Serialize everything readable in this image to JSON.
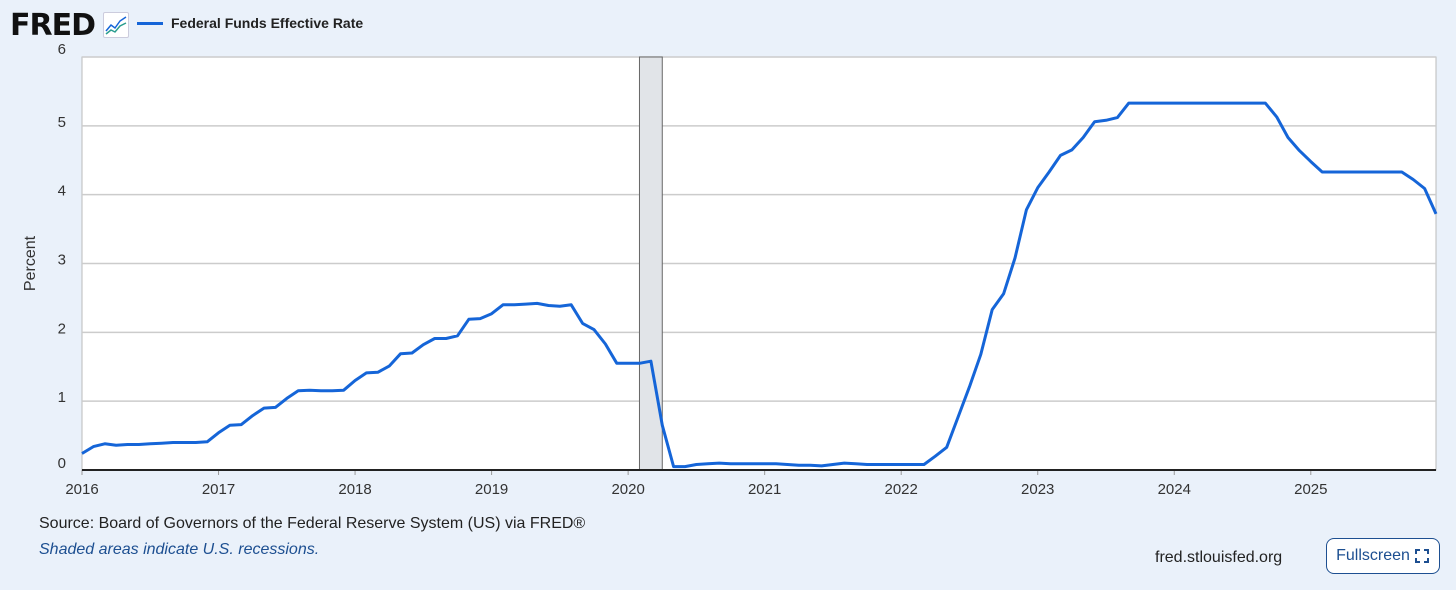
{
  "header": {
    "logo": "FRED",
    "logo_icon": "chart-line-icon",
    "legend_label": "Federal Funds Effective Rate"
  },
  "colors": {
    "series": "#1565d8",
    "recession": "#e1e4e8",
    "grid": "#cccccc"
  },
  "chart_data": {
    "type": "line",
    "title": "Federal Funds Effective Rate",
    "xlabel": "",
    "ylabel": "Percent",
    "ylim": [
      0,
      6
    ],
    "yticks": [
      "0",
      "1",
      "2",
      "3",
      "4",
      "5",
      "6"
    ],
    "xlim": [
      2016,
      2025.917
    ],
    "xticks": [
      "2016",
      "2017",
      "2018",
      "2019",
      "2020",
      "2021",
      "2022",
      "2023",
      "2024",
      "2025"
    ],
    "grid": true,
    "legend": "top-left",
    "x_start": "2016-01",
    "frequency": "monthly",
    "recessions": [
      {
        "start": 2020.083,
        "end": 2020.25
      }
    ],
    "series": [
      {
        "name": "Federal Funds Effective Rate",
        "values": [
          0.24,
          0.34,
          0.38,
          0.36,
          0.37,
          0.37,
          0.38,
          0.39,
          0.4,
          0.4,
          0.4,
          0.41,
          0.54,
          0.65,
          0.66,
          0.79,
          0.9,
          0.91,
          1.04,
          1.15,
          1.16,
          1.15,
          1.15,
          1.16,
          1.3,
          1.41,
          1.42,
          1.51,
          1.69,
          1.7,
          1.82,
          1.91,
          1.91,
          1.95,
          2.19,
          2.2,
          2.27,
          2.4,
          2.4,
          2.41,
          2.42,
          2.39,
          2.38,
          2.4,
          2.13,
          2.04,
          1.83,
          1.55,
          1.55,
          1.55,
          1.58,
          0.65,
          0.05,
          0.05,
          0.08,
          0.09,
          0.1,
          0.09,
          0.09,
          0.09,
          0.09,
          0.09,
          0.08,
          0.07,
          0.07,
          0.06,
          0.08,
          0.1,
          0.09,
          0.08,
          0.08,
          0.08,
          0.08,
          0.08,
          0.08,
          0.2,
          0.33,
          0.77,
          1.21,
          1.68,
          2.33,
          2.56,
          3.08,
          3.78,
          4.1,
          4.33,
          4.57,
          4.65,
          4.83,
          5.06,
          5.08,
          5.12,
          5.33,
          5.33,
          5.33,
          5.33,
          5.33,
          5.33,
          5.33,
          5.33,
          5.33,
          5.33,
          5.33,
          5.33,
          5.33,
          5.13,
          4.83,
          4.64,
          4.48,
          4.33,
          4.33,
          4.33,
          4.33,
          4.33,
          4.33,
          4.33,
          4.33,
          4.22,
          4.09,
          3.72
        ]
      }
    ]
  },
  "footer": {
    "source": "Source: Board of Governors of the Federal Reserve System (US) via FRED®",
    "note": "Shaded areas indicate U.S. recessions.",
    "site": "fred.stlouisfed.org",
    "fullscreen_label": "Fullscreen",
    "fullscreen_icon": "expand-icon"
  }
}
